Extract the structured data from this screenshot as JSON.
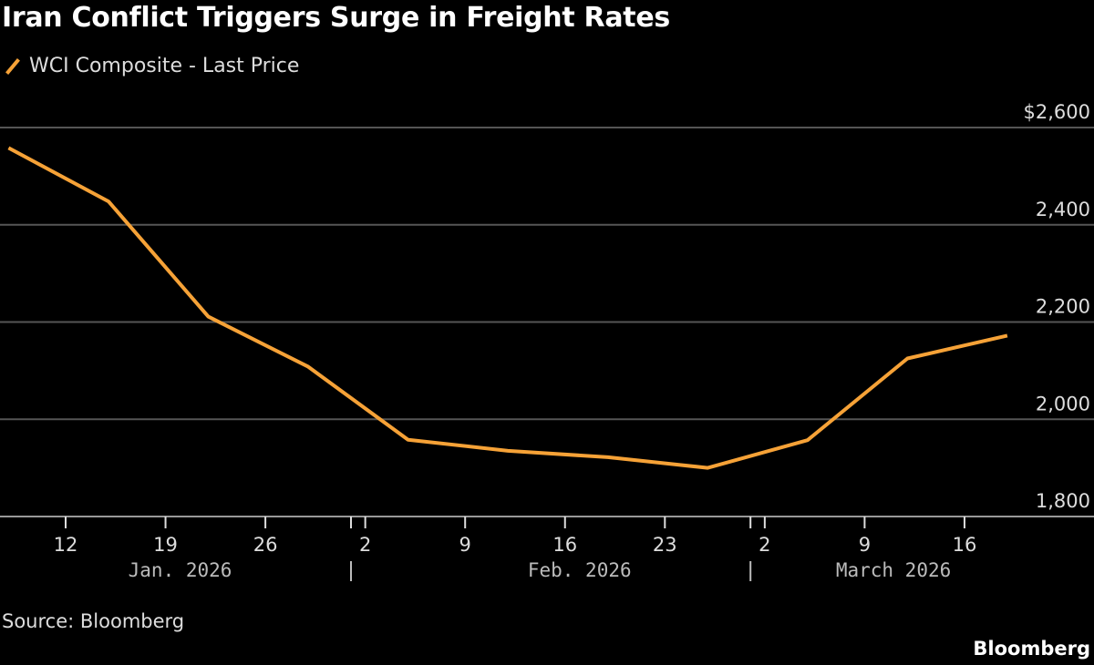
{
  "title": "Iran Conflict Triggers Surge in Freight Rates",
  "source": "Source: Bloomberg",
  "brand": "Bloomberg",
  "chart_data": {
    "type": "line",
    "title": "Iran Conflict Triggers Surge in Freight Rates",
    "series": [
      {
        "name": "WCI Composite - Last Price",
        "color": "#f6a237",
        "x": [
          "2026-01-08",
          "2026-01-15",
          "2026-01-22",
          "2026-01-29",
          "2026-02-05",
          "2026-02-12",
          "2026-02-19",
          "2026-02-26",
          "2026-03-05",
          "2026-03-12",
          "2026-03-19"
        ],
        "values": [
          2558,
          2448,
          2211,
          2108,
          1958,
          1935,
          1922,
          1900,
          1957,
          2125,
          2172
        ]
      }
    ],
    "ylim": [
      1800,
      2600
    ],
    "y_ticks": [
      {
        "value": 2600,
        "label": "$2,600"
      },
      {
        "value": 2400,
        "label": "2,400"
      },
      {
        "value": 2200,
        "label": "2,200"
      },
      {
        "value": 2000,
        "label": "2,000"
      },
      {
        "value": 1800,
        "label": "1,800"
      }
    ],
    "x_ticks": [
      {
        "date": "2026-01-12",
        "label": "12"
      },
      {
        "date": "2026-01-19",
        "label": "19"
      },
      {
        "date": "2026-01-26",
        "label": "26"
      },
      {
        "date": "2026-02-02",
        "label": "2"
      },
      {
        "date": "2026-02-09",
        "label": "9"
      },
      {
        "date": "2026-02-16",
        "label": "16"
      },
      {
        "date": "2026-02-23",
        "label": "23"
      },
      {
        "date": "2026-03-02",
        "label": "2"
      },
      {
        "date": "2026-03-09",
        "label": "9"
      },
      {
        "date": "2026-03-16",
        "label": "16"
      }
    ],
    "months": [
      {
        "date": "2026-01-19",
        "label": "Jan. 2026"
      },
      {
        "date": "2026-02-16",
        "label": "Feb. 2026"
      },
      {
        "date": "2026-03-10",
        "label": "March 2026"
      }
    ],
    "month_boundaries": [
      "2026-02-01",
      "2026-03-01"
    ],
    "y_axis_position": "right",
    "grid": true,
    "legend_position": "top-left"
  }
}
